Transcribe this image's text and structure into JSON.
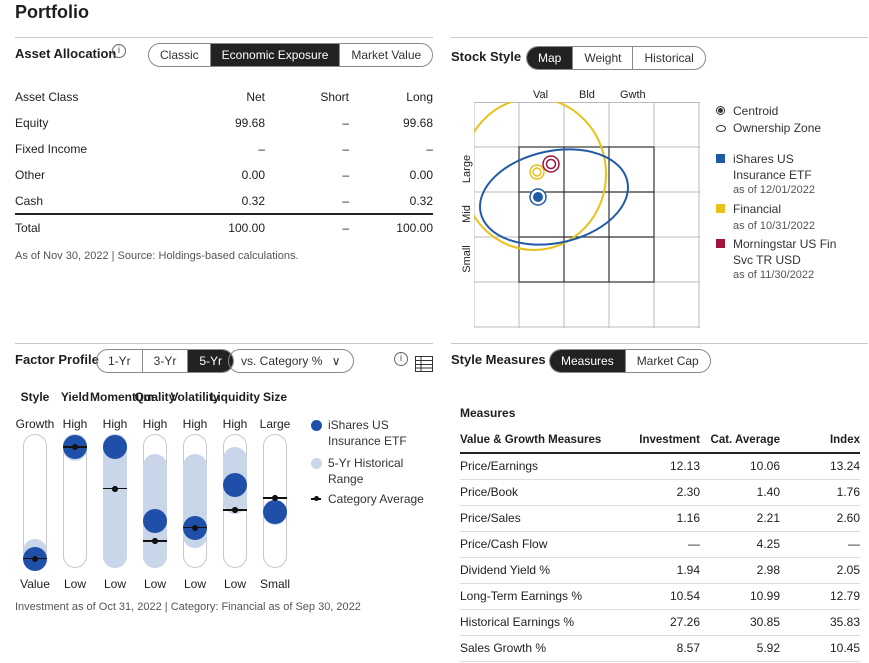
{
  "page_title": "Portfolio",
  "asset_allocation": {
    "title": "Asset Allocation",
    "info_icon": "info-circle-icon",
    "tabs": [
      {
        "label": "Classic",
        "active": false
      },
      {
        "label": "Economic Exposure",
        "active": true
      },
      {
        "label": "Market Value",
        "active": false
      }
    ],
    "columns": [
      "Asset Class",
      "Net",
      "Short",
      "Long"
    ],
    "rows": [
      {
        "name": "Equity",
        "net": "99.68",
        "short": "–",
        "long": "99.68"
      },
      {
        "name": "Fixed Income",
        "net": "–",
        "short": "–",
        "long": "–"
      },
      {
        "name": "Other",
        "net": "0.00",
        "short": "–",
        "long": "0.00"
      },
      {
        "name": "Cash",
        "net": "0.32",
        "short": "–",
        "long": "0.32"
      }
    ],
    "total": {
      "name": "Total",
      "net": "100.00",
      "short": "–",
      "long": "100.00"
    },
    "footnote": "As of Nov 30, 2022 | Source: Holdings-based calculations."
  },
  "stock_style": {
    "title": "Stock Style",
    "tabs": [
      {
        "label": "Map",
        "active": true
      },
      {
        "label": "Weight",
        "active": false
      },
      {
        "label": "Historical",
        "active": false
      }
    ],
    "col_labels": [
      "Val",
      "Bld",
      "Gwth"
    ],
    "row_labels": [
      "Large",
      "Mid",
      "Small"
    ],
    "legend": {
      "centroid": "Centroid",
      "ownership_zone": "Ownership Zone",
      "series": [
        {
          "name": "iShares US Insurance ETF",
          "as_of": "as of 12/01/2022",
          "color": "#1f5aa6"
        },
        {
          "name": "Financial",
          "as_of": "as of 10/31/2022",
          "color": "#e8c11a"
        },
        {
          "name": "Morningstar US Fin Svc TR USD",
          "as_of": "as of 11/30/2022",
          "color": "#a3123a"
        }
      ]
    }
  },
  "factor_profile": {
    "title": "Factor Profile",
    "tabs": [
      {
        "label": "1-Yr",
        "active": false
      },
      {
        "label": "3-Yr",
        "active": false
      },
      {
        "label": "5-Yr",
        "active": true
      }
    ],
    "dropdown_label": "vs. Category %",
    "factors": [
      {
        "name": "Style",
        "top": "Growth",
        "bottom": "Value",
        "investment": 0.07,
        "range": [
          0.0,
          0.22
        ],
        "category": 0.07
      },
      {
        "name": "Yield",
        "top": "High",
        "bottom": "Low",
        "investment": 0.9,
        "range": [
          0.8,
          1.0
        ],
        "category": 0.9
      },
      {
        "name": "Momentum",
        "top": "High",
        "bottom": "Low",
        "investment": 0.9,
        "range": [
          0.0,
          1.0
        ],
        "category": 0.59
      },
      {
        "name": "Quality",
        "top": "High",
        "bottom": "Low",
        "investment": 0.35,
        "range": [
          0.0,
          0.85
        ],
        "category": 0.2
      },
      {
        "name": "Volatility",
        "top": "High",
        "bottom": "Low",
        "investment": 0.3,
        "range": [
          0.15,
          0.85
        ],
        "category": 0.3
      },
      {
        "name": "Liquidity",
        "top": "High",
        "bottom": "Low",
        "investment": 0.62,
        "range": [
          0.4,
          0.9
        ],
        "category": 0.43
      },
      {
        "name": "Size",
        "top": "Large",
        "bottom": "Small",
        "investment": 0.42,
        "range": [
          0.45,
          0.5
        ],
        "category": 0.52
      }
    ],
    "legend": {
      "investment": "iShares US Insurance ETF",
      "range": "5-Yr Historical Range",
      "category": "Category Average"
    },
    "footnote": "Investment as of Oct 31, 2022 | Category: Financial as of Sep 30, 2022"
  },
  "style_measures": {
    "title": "Style Measures",
    "tabs": [
      {
        "label": "Measures",
        "active": true
      },
      {
        "label": "Market Cap",
        "active": false
      }
    ],
    "subtitle": "Measures",
    "columns": [
      "Value & Growth Measures",
      "Investment",
      "Cat. Average",
      "Index"
    ],
    "rows": [
      {
        "name": "Price/Earnings",
        "investment": "12.13",
        "cat": "10.06",
        "index": "13.24"
      },
      {
        "name": "Price/Book",
        "investment": "2.30",
        "cat": "1.40",
        "index": "1.76"
      },
      {
        "name": "Price/Sales",
        "investment": "1.16",
        "cat": "2.21",
        "index": "2.60"
      },
      {
        "name": "Price/Cash Flow",
        "investment": "—",
        "cat": "4.25",
        "index": "—"
      },
      {
        "name": "Dividend Yield %",
        "investment": "1.94",
        "cat": "2.98",
        "index": "2.05"
      },
      {
        "name": "Long-Term Earnings %",
        "investment": "10.54",
        "cat": "10.99",
        "index": "12.79"
      },
      {
        "name": "Historical Earnings %",
        "investment": "27.26",
        "cat": "30.85",
        "index": "35.83"
      },
      {
        "name": "Sales Growth %",
        "investment": "8.57",
        "cat": "5.92",
        "index": "10.45"
      }
    ]
  }
}
